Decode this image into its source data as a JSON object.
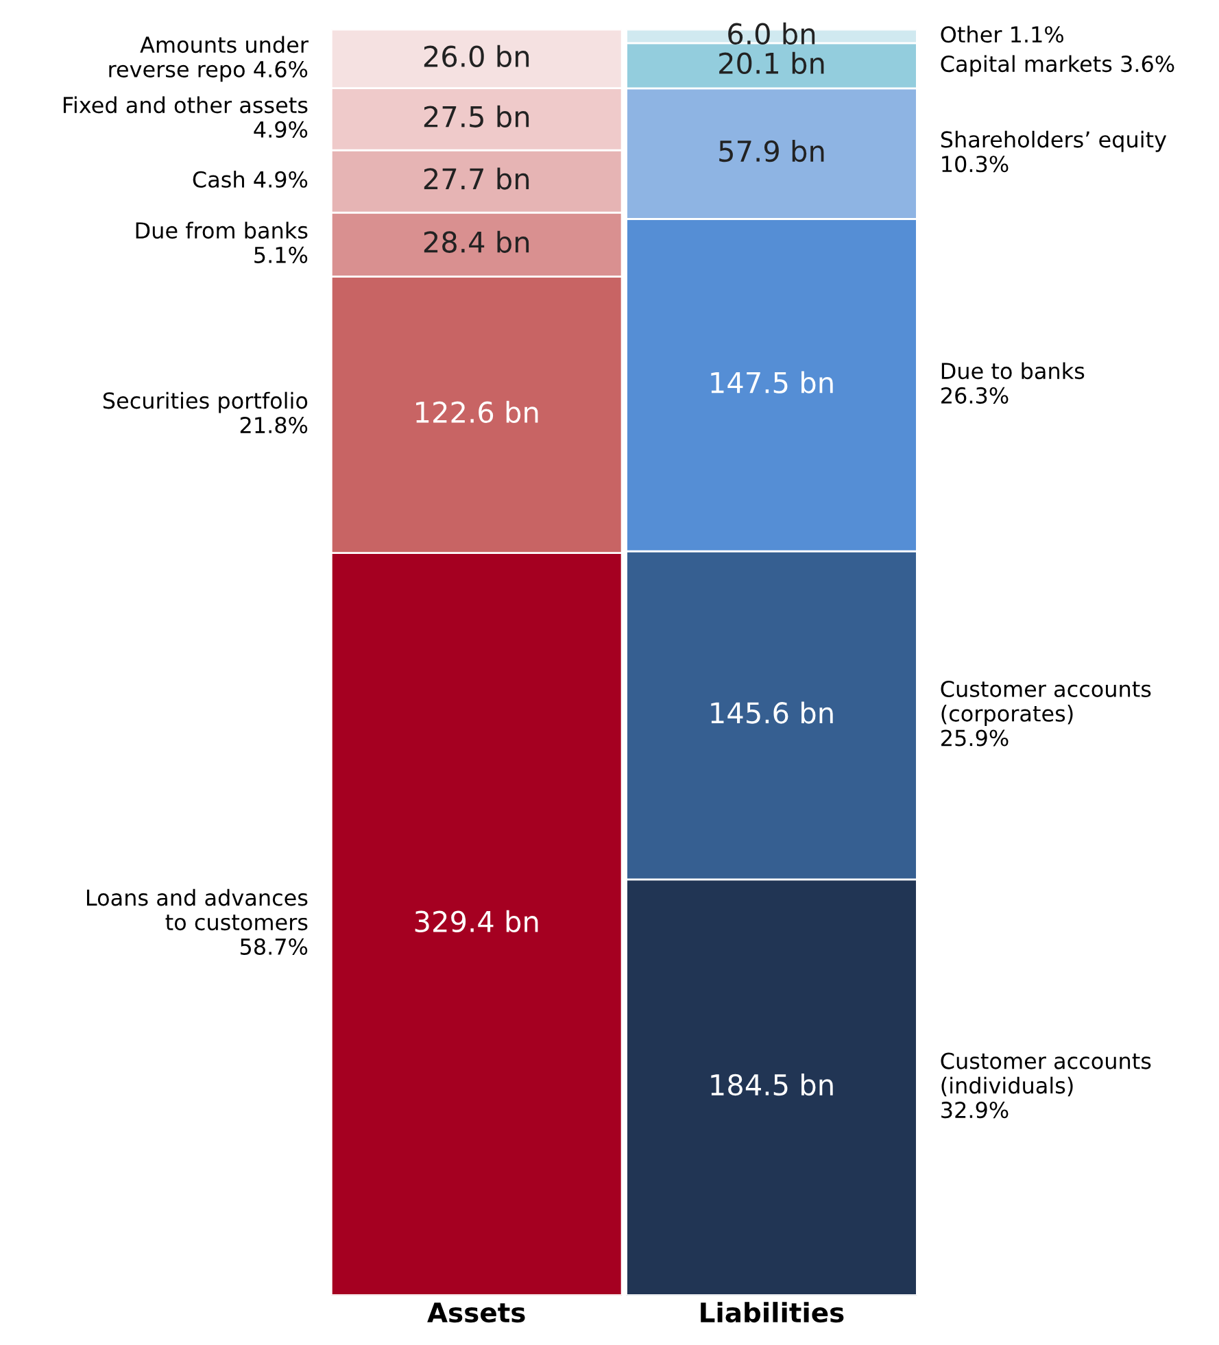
{
  "chart_data": {
    "type": "bar",
    "stacked": true,
    "categories": [
      "Assets",
      "Liabilities"
    ],
    "ylim": [
      0,
      561.6
    ],
    "tick_labels": "x",
    "series": [
      {
        "name": "Loans and advances\nto customers\n58.7%",
        "color": "#a50021",
        "values": [
          329.4,
          null
        ],
        "value_labels": [
          "329.4 bn",
          null
        ]
      },
      {
        "name": "Securities portfolio\n21.8%",
        "color": "#c86464",
        "values": [
          122.6,
          null
        ],
        "value_labels": [
          "122.6 bn",
          null
        ]
      },
      {
        "name": "Due from banks\n5.1%",
        "color": "#d99090",
        "values": [
          28.4,
          null
        ],
        "value_labels": [
          "28.4 bn",
          null
        ]
      },
      {
        "name": "Cash 4.9%",
        "color": "#e6b4b4",
        "values": [
          27.7,
          null
        ],
        "value_labels": [
          "27.7 bn",
          null
        ]
      },
      {
        "name": "Fixed and other assets\n4.9%",
        "color": "#efcaca",
        "values": [
          27.5,
          null
        ],
        "value_labels": [
          "27.5 bn",
          null
        ]
      },
      {
        "name": "Amounts under\nreverse repo 4.6%",
        "color": "#f5e1e1",
        "values": [
          26.0,
          null
        ],
        "value_labels": [
          "26.0 bn",
          null
        ]
      },
      {
        "name": "Customer accounts\n(individuals)\n32.9%",
        "color": "#213554",
        "values": [
          null,
          184.5
        ],
        "value_labels": [
          null,
          "184.5 bn"
        ]
      },
      {
        "name": "Customer accounts\n(corporates)\n25.9%",
        "color": "#365f91",
        "values": [
          null,
          145.6
        ],
        "value_labels": [
          null,
          "145.6 bn"
        ]
      },
      {
        "name": "Due to banks\n26.3%",
        "color": "#558ed5",
        "values": [
          null,
          147.5
        ],
        "value_labels": [
          null,
          "147.5 bn"
        ]
      },
      {
        "name": "Shareholders’ equity\n10.3%",
        "color": "#8eb4e3",
        "values": [
          null,
          57.9
        ],
        "value_labels": [
          null,
          "57.9 bn"
        ]
      },
      {
        "name": "Capital markets 3.6%",
        "color": "#93cddd",
        "values": [
          null,
          20.1
        ],
        "value_labels": [
          null,
          "20.1 bn"
        ]
      },
      {
        "name": "Other 1.1%",
        "color": "#d0e9f0",
        "values": [
          null,
          6.0
        ],
        "value_labels": [
          null,
          "6.0 bn"
        ]
      }
    ]
  }
}
